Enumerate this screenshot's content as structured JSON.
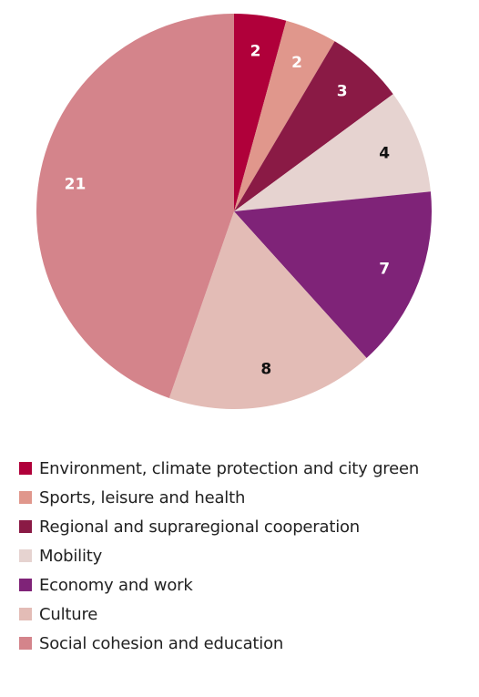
{
  "chart_data": {
    "type": "pie",
    "title": "",
    "start_angle_deg": 0,
    "direction": "clockwise",
    "slices": [
      {
        "label": "Environment, climate protection and city green",
        "value": 2,
        "value_label": "2",
        "color": "#B0003A",
        "label_color": "#ffffff"
      },
      {
        "label": "Sports, leisure and health",
        "value": 2,
        "value_label": "2",
        "color": "#E0978C",
        "label_color": "#ffffff"
      },
      {
        "label": "Regional and supraregional cooperation",
        "value": 3,
        "value_label": "3",
        "color": "#8A1A45",
        "label_color": "#ffffff"
      },
      {
        "label": "Mobility",
        "value": 4,
        "value_label": "4",
        "color": "#E6D3D0",
        "label_color": "#111111"
      },
      {
        "label": "Economy and work",
        "value": 7,
        "value_label": "7",
        "color": "#7F2378",
        "label_color": "#ffffff"
      },
      {
        "label": "Culture",
        "value": 8,
        "value_label": "8",
        "color": "#E3BCB6",
        "label_color": "#111111"
      },
      {
        "label": "Social cohesion and education",
        "value": 21,
        "value_label": "21",
        "color": "#D4848B",
        "label_color": "#ffffff"
      }
    ],
    "legend": {
      "placement": "bottom"
    }
  }
}
